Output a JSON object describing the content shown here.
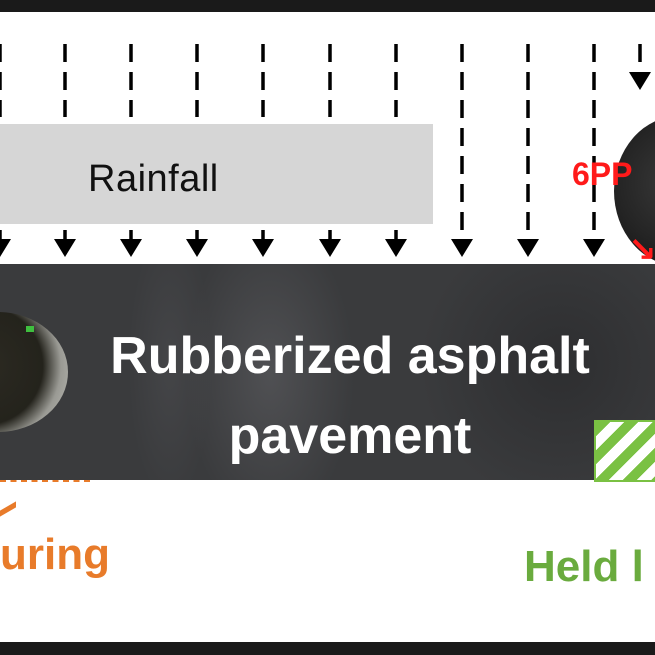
{
  "diagram": {
    "rain_label": "Rainfall",
    "pavement_line1": "Rubberized asphalt",
    "pavement_line2": "pavement",
    "left_caption_line1": "d during",
    "left_caption_line2": "fall",
    "right_red_label": "6PP",
    "right_green_label": "Held l",
    "colors": {
      "orange": "#e87b2a",
      "green": "#6aab3e",
      "red": "#ff1a1a",
      "pavement": "#3a3b3d",
      "rain_box": "#d6d6d6"
    }
  }
}
